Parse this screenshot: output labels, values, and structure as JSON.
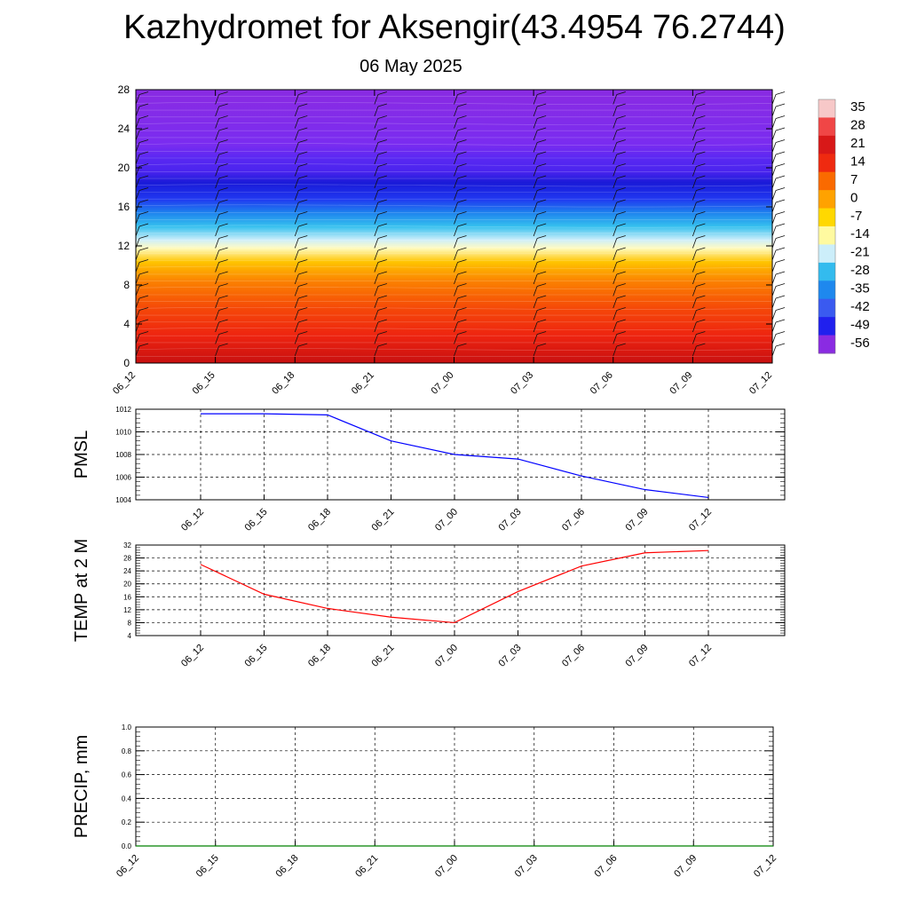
{
  "title": "Kazhydromet for Aksengir(43.4954 76.2744)",
  "subtitle": "06 May 2025",
  "chart_data": [
    {
      "type": "heatmap",
      "name": "cross-section",
      "x_ticks": [
        "06_12",
        "06_15",
        "06_18",
        "06_21",
        "07_00",
        "07_03",
        "07_06",
        "07_09",
        "07_12"
      ],
      "y_ticks": [
        0,
        4,
        8,
        12,
        16,
        20,
        24,
        28
      ],
      "ylim": [
        0,
        28
      ],
      "colorbar": {
        "labels": [
          "35",
          "28",
          "21",
          "14",
          "7",
          "0",
          "-7",
          "-14",
          "-21",
          "-28",
          "-35",
          "-42",
          "-49",
          "-56"
        ],
        "colors": [
          "#f7c8c8",
          "#f04646",
          "#d81818",
          "#ef2a10",
          "#fa6a00",
          "#ffa200",
          "#ffd800",
          "#fffaa0",
          "#cceefa",
          "#33bbee",
          "#1e88ee",
          "#3a5af0",
          "#2020ee",
          "#8a2be2"
        ]
      },
      "wind_barbs": true
    },
    {
      "type": "line",
      "ylabel": "PMSL",
      "color": "#0000ff",
      "categories": [
        "06_12",
        "06_15",
        "06_18",
        "06_21",
        "07_00",
        "07_03",
        "07_06",
        "07_09",
        "07_12"
      ],
      "values": [
        1011.6,
        1011.6,
        1011.5,
        1009.2,
        1008.0,
        1007.6,
        1006.1,
        1004.9,
        1004.2
      ],
      "ylim": [
        1004,
        1012
      ],
      "y_ticks": [
        "1004",
        "1006",
        "1008",
        "1010",
        "1012"
      ],
      "grid": true
    },
    {
      "type": "line",
      "ylabel": "TEMP at 2 M",
      "color": "#ff0000",
      "categories": [
        "06_12",
        "06_15",
        "06_18",
        "06_21",
        "07_00",
        "07_03",
        "07_06",
        "07_09",
        "07_12"
      ],
      "values": [
        26.0,
        16.8,
        12.4,
        9.7,
        8.0,
        17.6,
        25.5,
        29.6,
        30.3
      ],
      "ylim": [
        4,
        32
      ],
      "y_ticks": [
        "4",
        "8",
        "12",
        "16",
        "20",
        "24",
        "28",
        "32"
      ],
      "grid": true
    },
    {
      "type": "line",
      "ylabel": "PRECIP, mm",
      "color": "#008000",
      "x_ticks": [
        "06_12",
        "06_15",
        "06_18",
        "06_21",
        "07_00",
        "07_03",
        "07_06",
        "07_09",
        "07_12"
      ],
      "values": [
        0,
        0,
        0,
        0,
        0,
        0,
        0,
        0,
        0
      ],
      "ylim": [
        0,
        1.0
      ],
      "y_ticks": [
        "0.0",
        "0.2",
        "0.4",
        "0.6",
        "0.8",
        "1.0"
      ],
      "grid": true
    }
  ]
}
